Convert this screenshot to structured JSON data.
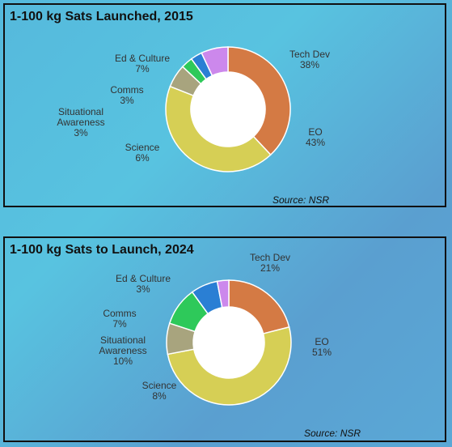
{
  "chart_data": [
    {
      "type": "pie",
      "title": "1-100 kg Sats Launched, 2015",
      "source": "Source: NSR",
      "slices": [
        {
          "name": "Tech Dev",
          "value": 38,
          "label": "38%",
          "color": "#d47a44"
        },
        {
          "name": "EO",
          "value": 43,
          "label": "43%",
          "color": "#d6cf55"
        },
        {
          "name": "Science",
          "value": 6,
          "label": "6%",
          "color": "#a8a47e"
        },
        {
          "name": "Situational Awareness",
          "value": 3,
          "label": "3%",
          "color": "#2ec95a"
        },
        {
          "name": "Comms",
          "value": 3,
          "label": "3%",
          "color": "#2a7fd4"
        },
        {
          "name": "Ed & Culture",
          "value": 7,
          "label": "7%",
          "color": "#cc88ec"
        }
      ]
    },
    {
      "type": "pie",
      "title": "1-100 kg Sats to Launch, 2024",
      "source": "Source: NSR",
      "slices": [
        {
          "name": "Tech Dev",
          "value": 21,
          "label": "21%",
          "color": "#d47a44"
        },
        {
          "name": "EO",
          "value": 51,
          "label": "51%",
          "color": "#d6cf55"
        },
        {
          "name": "Science",
          "value": 8,
          "label": "8%",
          "color": "#a8a47e"
        },
        {
          "name": "Situational Awareness",
          "value": 10,
          "label": "10%",
          "color": "#2ec95a"
        },
        {
          "name": "Comms",
          "value": 7,
          "label": "7%",
          "color": "#2a7fd4"
        },
        {
          "name": "Ed & Culture",
          "value": 3,
          "label": "3%",
          "color": "#cc88ec"
        }
      ]
    }
  ]
}
